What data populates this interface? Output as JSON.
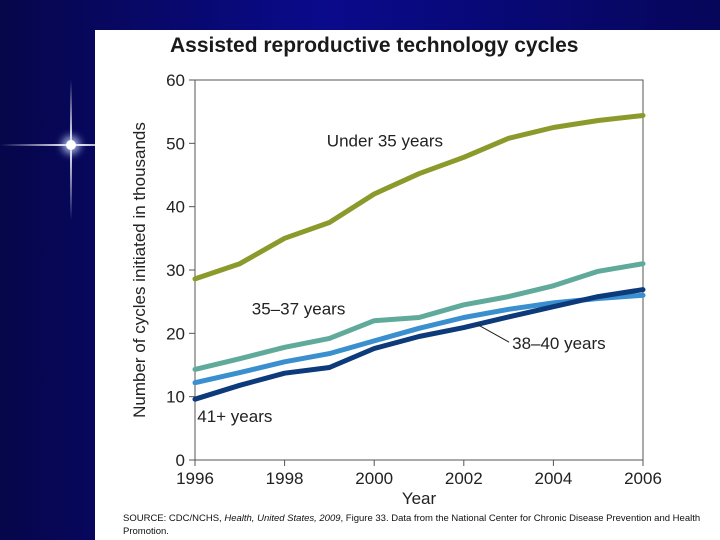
{
  "chart_data": {
    "type": "line",
    "title": "Assisted reproductive technology cycles",
    "xlabel": "Year",
    "ylabel": "Number of cycles initiated in thousands",
    "xlim": [
      1996,
      2006
    ],
    "ylim": [
      0,
      60
    ],
    "x_ticks": [
      "1996",
      "1998",
      "2000",
      "2002",
      "2004",
      "2006"
    ],
    "y_ticks": [
      "0",
      "10",
      "20",
      "30",
      "40",
      "50",
      "60"
    ],
    "x": [
      1996,
      1997,
      1998,
      1999,
      2000,
      2001,
      2002,
      2003,
      2004,
      2005,
      2006
    ],
    "series": [
      {
        "name": "Under 35 years",
        "color": "#8c9a2c",
        "values": [
          28.6,
          31.0,
          35.0,
          37.5,
          42.0,
          45.2,
          47.8,
          50.8,
          52.5,
          53.6,
          54.4
        ]
      },
      {
        "name": "35–37 years",
        "color": "#5faa9a",
        "values": [
          14.3,
          16.0,
          17.8,
          19.2,
          22.0,
          22.5,
          24.5,
          25.8,
          27.5,
          29.8,
          31.0
        ]
      },
      {
        "name": "38–40 years",
        "color": "#3a8fcf",
        "values": [
          12.2,
          13.8,
          15.5,
          16.8,
          18.8,
          20.8,
          22.5,
          23.8,
          24.8,
          25.5,
          26.0
        ]
      },
      {
        "name": "41+ years",
        "color": "#0d3a7a",
        "values": [
          9.6,
          11.8,
          13.7,
          14.6,
          17.6,
          19.5,
          20.9,
          22.6,
          24.2,
          25.8,
          26.9
        ]
      }
    ],
    "source": {
      "prefix": "SOURCE: CDC/NCHS, ",
      "publication": "Health, United States, 2009",
      "suffix": ", Figure 33. Data from the National Center for Chronic Disease Prevention and Health Promotion."
    }
  }
}
